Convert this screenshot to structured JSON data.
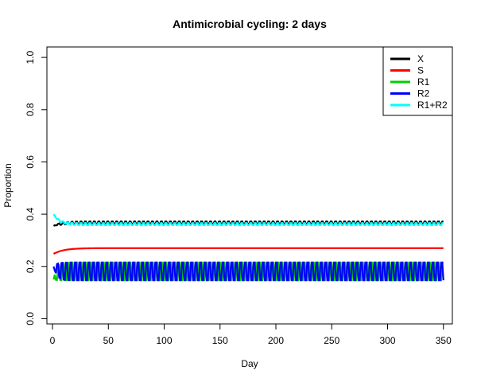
{
  "chart_data": {
    "type": "line",
    "title": "Antimicrobial cycling: 2 days",
    "xlabel": "Day",
    "ylabel": "Proportion",
    "xlim": [
      -5,
      358
    ],
    "ylim": [
      -0.02,
      1.04
    ],
    "x_ticks": [
      "0",
      "50",
      "100",
      "150",
      "200",
      "250",
      "300",
      "350"
    ],
    "x_tick_values": [
      0,
      50,
      100,
      150,
      200,
      250,
      300,
      350
    ],
    "y_ticks": [
      "0.0",
      "0.2",
      "0.4",
      "0.6",
      "0.8",
      "1.0"
    ],
    "y_tick_values": [
      0,
      0.2,
      0.4,
      0.6,
      0.8,
      1.0
    ],
    "grid": false,
    "legend_position": "top-right",
    "day_range": [
      1,
      350
    ],
    "cycle_length_days": 2,
    "series": [
      {
        "name": "X",
        "color": "#000000",
        "start": 0.355,
        "steady_low": 0.362,
        "steady_high": 0.372,
        "relax_days": 6,
        "oscillating": true
      },
      {
        "name": "S",
        "color": "#ff0000",
        "start": 0.248,
        "steady_low": 0.27,
        "steady_high": 0.27,
        "relax_days": 9,
        "oscillating": false
      },
      {
        "name": "R1",
        "color": "#00cd00",
        "start": 0.15,
        "steady_low": 0.147,
        "steady_high": 0.215,
        "relax_days": 3,
        "oscillating": true,
        "phase": 0
      },
      {
        "name": "R2",
        "color": "#0000ff",
        "start": 0.2,
        "steady_low": 0.147,
        "steady_high": 0.215,
        "relax_days": 3,
        "oscillating": true,
        "phase": 1
      },
      {
        "name": "R1+R2",
        "color": "#00ffff",
        "start": 0.4,
        "steady_low": 0.358,
        "steady_high": 0.366,
        "relax_days": 5,
        "oscillating": true
      }
    ]
  }
}
